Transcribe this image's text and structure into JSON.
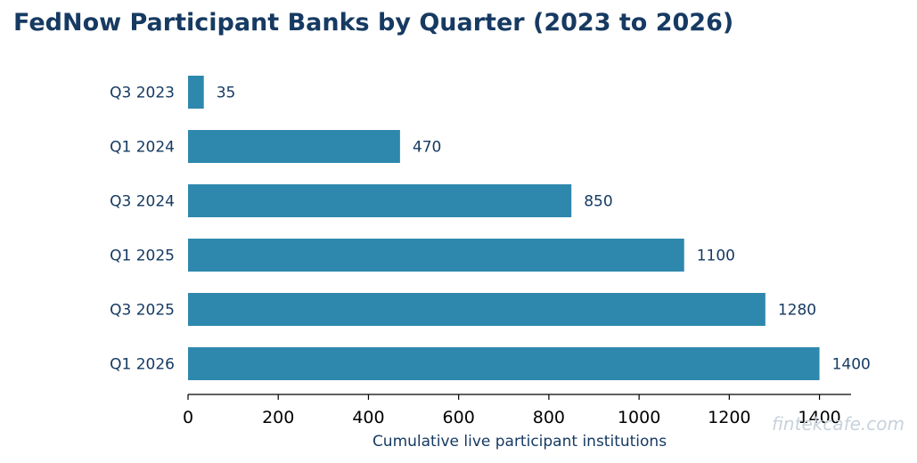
{
  "chart_data": {
    "type": "bar",
    "orientation": "horizontal",
    "title": "FedNow Participant Banks by Quarter (2023 to 2026)",
    "xlabel": "Cumulative live participant institutions",
    "ylabel": "",
    "categories": [
      "Q3 2023",
      "Q1 2024",
      "Q3 2024",
      "Q1 2025",
      "Q3 2025",
      "Q1 2026"
    ],
    "values": [
      35,
      470,
      850,
      1100,
      1280,
      1400
    ],
    "xlim": [
      0,
      1470
    ],
    "xticks": [
      0,
      200,
      400,
      600,
      800,
      1000,
      1200,
      1400
    ],
    "grid": false,
    "bar_color": "#2e88ad",
    "text_color": "#163a62"
  },
  "watermark": "fintekcafe.com"
}
